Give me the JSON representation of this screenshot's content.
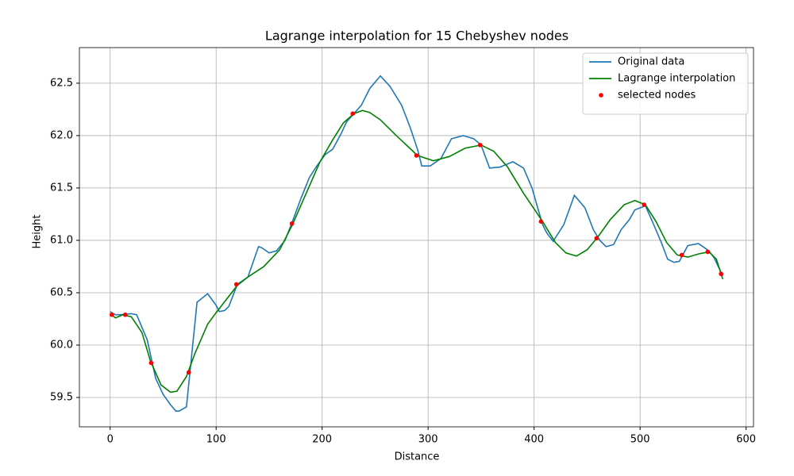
{
  "chart_data": {
    "type": "line",
    "title": "Lagrange interpolation for 15 Chebyshev nodes",
    "x_label": "Distance",
    "y_label": "Height",
    "xlim": [
      -29,
      607
    ],
    "ylim": [
      59.22,
      62.84
    ],
    "xticks": [
      0,
      100,
      200,
      300,
      400,
      500,
      600
    ],
    "yticks": [
      59.5,
      {
        "value": 60,
        "label": "60.0"
      },
      60.5,
      {
        "value": 61,
        "label": "61.0"
      },
      61.5,
      {
        "value": 62,
        "label": "62.0"
      },
      62.5
    ],
    "grid": true,
    "legend": "upper right",
    "series": [
      {
        "name": "Original data",
        "type": "line",
        "color": "#1f77b4",
        "x": [
          0,
          5,
          10,
          20,
          25,
          35,
          43,
          50,
          57,
          62,
          65,
          72,
          82,
          92,
          100,
          103,
          108,
          112,
          120,
          130,
          140,
          143,
          150,
          157,
          165,
          172,
          180,
          188,
          195,
          203,
          210,
          218,
          223,
          230,
          237,
          245,
          255,
          264,
          275,
          283,
          290,
          294,
          302,
          312,
          322,
          333,
          343,
          350,
          358,
          368,
          380,
          390,
          398,
          408,
          412,
          418,
          428,
          438,
          448,
          456,
          462,
          468,
          475,
          482,
          490,
          495,
          505,
          512,
          520,
          526,
          532,
          537,
          545,
          555,
          565,
          570,
          578
        ],
        "values": [
          60.32,
          60.29,
          60.29,
          60.3,
          60.29,
          60.05,
          59.68,
          59.53,
          59.43,
          59.37,
          59.37,
          59.41,
          60.41,
          60.49,
          60.38,
          60.32,
          60.33,
          60.37,
          60.58,
          60.65,
          60.94,
          60.93,
          60.88,
          60.9,
          61.0,
          61.18,
          61.4,
          61.6,
          61.71,
          61.82,
          61.87,
          62.02,
          62.13,
          62.21,
          62.29,
          62.45,
          62.57,
          62.47,
          62.29,
          62.08,
          61.87,
          61.71,
          61.71,
          61.78,
          61.97,
          62.0,
          61.97,
          61.91,
          61.69,
          61.7,
          61.75,
          61.69,
          61.5,
          61.15,
          61.07,
          60.99,
          61.15,
          61.43,
          61.31,
          61.1,
          61.0,
          60.94,
          60.96,
          61.1,
          61.2,
          61.29,
          61.33,
          61.17,
          60.98,
          60.82,
          60.79,
          60.8,
          60.95,
          60.97,
          60.9,
          60.83,
          60.66
        ]
      },
      {
        "name": "Lagrange interpolation",
        "type": "line",
        "color": "#008000",
        "x": [
          0,
          5,
          12,
          20,
          30,
          38,
          48,
          57,
          63,
          72,
          80,
          92,
          100,
          110,
          120,
          130,
          145,
          160,
          172,
          185,
          198,
          210,
          220,
          230,
          238,
          245,
          255,
          270,
          290,
          305,
          320,
          335,
          350,
          362,
          375,
          390,
          408,
          420,
          430,
          440,
          450,
          460,
          472,
          485,
          495,
          505,
          515,
          525,
          535,
          545,
          555,
          565,
          572,
          578
        ],
        "values": [
          60.3,
          60.26,
          60.29,
          60.27,
          60.12,
          59.85,
          59.62,
          59.55,
          59.56,
          59.7,
          59.92,
          60.2,
          60.31,
          60.44,
          60.57,
          60.65,
          60.75,
          60.91,
          61.15,
          61.45,
          61.75,
          61.96,
          62.12,
          62.21,
          62.24,
          62.22,
          62.15,
          62.0,
          61.81,
          61.76,
          61.8,
          61.88,
          61.91,
          61.85,
          61.7,
          61.45,
          61.18,
          60.98,
          60.88,
          60.85,
          60.91,
          61.03,
          61.2,
          61.34,
          61.38,
          61.34,
          61.18,
          60.98,
          60.86,
          60.84,
          60.87,
          60.89,
          60.82,
          60.63
        ]
      },
      {
        "name": "selected nodes",
        "type": "scatter",
        "color": "#ff0000",
        "x": [
          1.6,
          14.2,
          38.7,
          74.2,
          119.1,
          171.5,
          228.9,
          289,
          349.1,
          406.5,
          458.9,
          503.8,
          539.3,
          563.8,
          576.4
        ],
        "values": [
          60.29,
          60.29,
          59.83,
          59.74,
          60.58,
          61.16,
          62.21,
          61.81,
          61.91,
          61.18,
          61.02,
          61.34,
          60.86,
          60.89,
          60.68
        ]
      }
    ]
  }
}
